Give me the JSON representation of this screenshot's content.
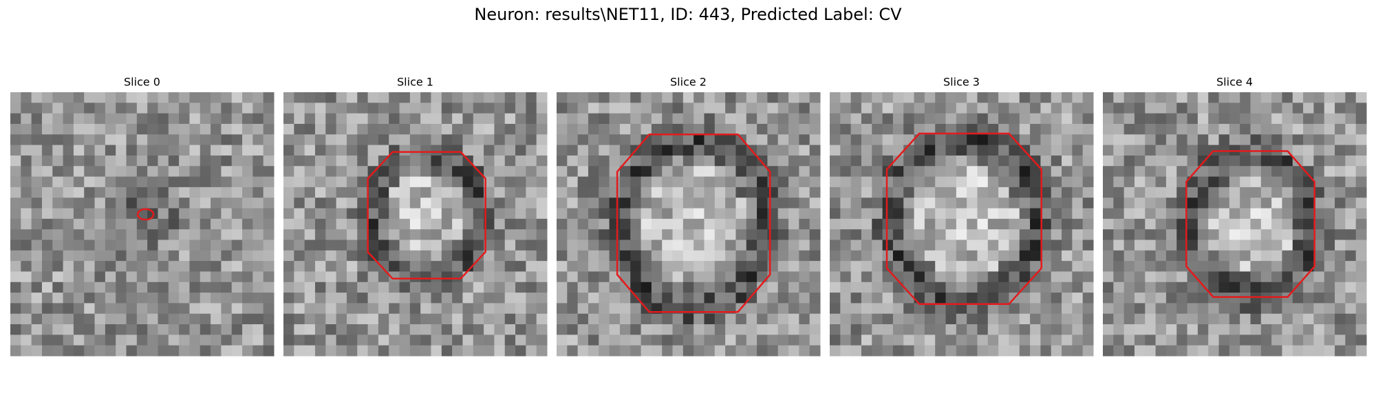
{
  "title": "Neuron: results\\NET11, ID: 443, Predicted Label: CV",
  "panels": [
    {
      "title": "Slice 0"
    },
    {
      "title": "Slice 1"
    },
    {
      "title": "Slice 2"
    },
    {
      "title": "Slice 3"
    },
    {
      "title": "Slice 4"
    }
  ]
}
